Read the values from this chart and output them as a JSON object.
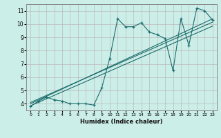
{
  "xlabel": "Humidex (Indice chaleur)",
  "ylabel": "",
  "bg_color": "#cceee8",
  "grid_color": "#bbbbbb",
  "line_color": "#1a6b6b",
  "xlim": [
    -0.5,
    23.5
  ],
  "ylim": [
    3.5,
    11.5
  ],
  "xticks": [
    0,
    1,
    2,
    3,
    4,
    5,
    6,
    7,
    8,
    9,
    10,
    11,
    12,
    13,
    14,
    15,
    16,
    17,
    18,
    19,
    20,
    21,
    22,
    23
  ],
  "yticks": [
    4,
    5,
    6,
    7,
    8,
    9,
    10,
    11
  ],
  "scatter_x": [
    0,
    1,
    2,
    3,
    4,
    5,
    6,
    7,
    8,
    9,
    10,
    11,
    12,
    13,
    14,
    15,
    16,
    17,
    18,
    19,
    20,
    21,
    22,
    23
  ],
  "scatter_y": [
    3.8,
    4.2,
    4.5,
    4.3,
    4.2,
    4.0,
    4.0,
    4.0,
    3.9,
    5.2,
    7.4,
    10.4,
    9.8,
    9.8,
    10.1,
    9.4,
    9.2,
    8.9,
    6.5,
    10.4,
    8.4,
    11.2,
    11.0,
    10.3
  ],
  "line1_x": [
    0,
    23
  ],
  "line1_y": [
    4.0,
    10.4
  ],
  "line2_x": [
    0,
    23
  ],
  "line2_y": [
    3.85,
    9.85
  ],
  "line3_x": [
    0,
    23
  ],
  "line3_y": [
    4.1,
    10.15
  ]
}
